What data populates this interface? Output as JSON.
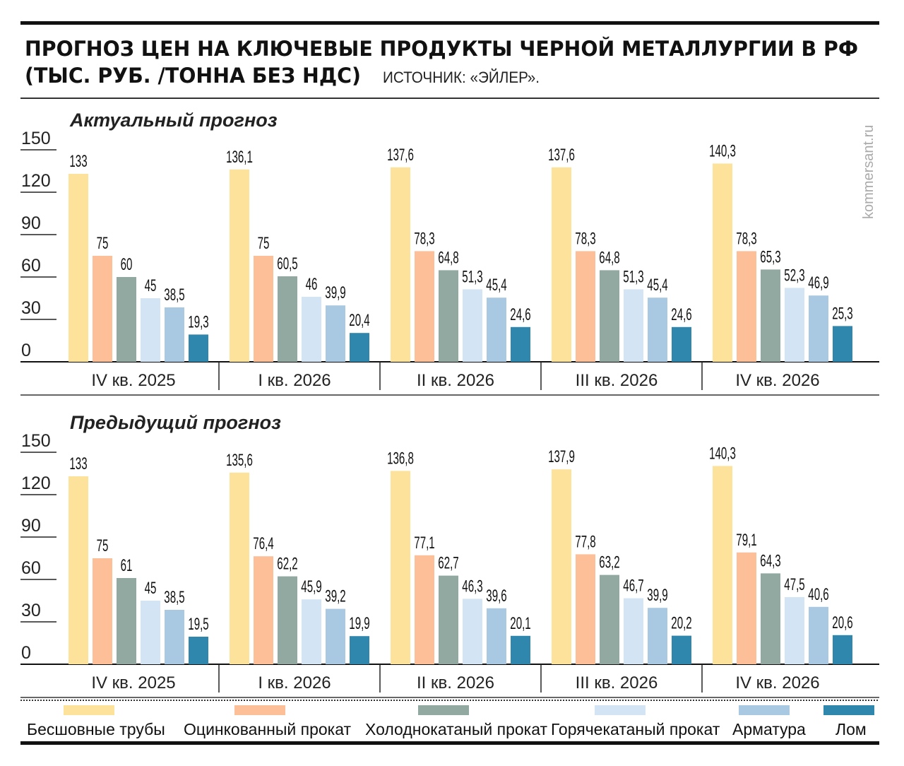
{
  "header": {
    "title_line1": "ПРОГНОЗ ЦЕН НА КЛЮЧЕВЫЕ ПРОДУКТЫ ЧЕРНОЙ МЕТАЛЛУРГИИ В РФ",
    "title_line2": "(ТЫС. РУБ. /ТОННА БЕЗ НДС)",
    "source": "ИСТОЧНИК: «ЭЙЛЕР»."
  },
  "watermark": "kommersant.ru",
  "legend": [
    {
      "name": "Бесшовные трубы",
      "color": "#fde29c"
    },
    {
      "name": "Оцинкованный прокат",
      "color": "#fdbf97"
    },
    {
      "name": "Холоднокатаный прокат",
      "color": "#91a9a1"
    },
    {
      "name": "Горячекатаный прокат",
      "color": "#d3e4f5"
    },
    {
      "name": "Арматура",
      "color": "#a9c8e1"
    },
    {
      "name": "Лом",
      "color": "#2f87ae"
    }
  ],
  "chart_data": [
    {
      "type": "bar",
      "title": "Актуальный прогноз",
      "categories": [
        "IV кв. 2025",
        "I кв. 2026",
        "II кв. 2026",
        "III кв. 2026",
        "IV кв. 2026"
      ],
      "yticks": [
        "0",
        "30",
        "60",
        "90",
        "120",
        "150"
      ],
      "ylim": [
        0,
        150
      ],
      "series": [
        {
          "name": "Бесшовные трубы",
          "values": [
            133,
            136.1,
            137.6,
            137.6,
            140.3
          ],
          "labels": [
            "133",
            "136,1",
            "137,6",
            "137,6",
            "140,3"
          ]
        },
        {
          "name": "Оцинкованный прокат",
          "values": [
            75,
            75,
            78.3,
            78.3,
            78.3
          ],
          "labels": [
            "75",
            "75",
            "78,3",
            "78,3",
            "78,3"
          ]
        },
        {
          "name": "Холоднокатаный прокат",
          "values": [
            60,
            60.5,
            64.8,
            64.8,
            65.3
          ],
          "labels": [
            "60",
            "60,5",
            "64,8",
            "64,8",
            "65,3"
          ]
        },
        {
          "name": "Горячекатаный прокат",
          "values": [
            45,
            46,
            51.3,
            51.3,
            52.3
          ],
          "labels": [
            "45",
            "46",
            "51,3",
            "51,3",
            "52,3"
          ]
        },
        {
          "name": "Арматура",
          "values": [
            38.5,
            39.9,
            45.4,
            45.4,
            46.9
          ],
          "labels": [
            "38,5",
            "39,9",
            "45,4",
            "45,4",
            "46,9"
          ]
        },
        {
          "name": "Лом",
          "values": [
            19.3,
            20.4,
            24.6,
            24.6,
            25.3
          ],
          "labels": [
            "19,3",
            "20,4",
            "24,6",
            "24,6",
            "25,3"
          ]
        }
      ]
    },
    {
      "type": "bar",
      "title": "Предыдущий прогноз",
      "categories": [
        "IV кв. 2025",
        "I кв. 2026",
        "II кв. 2026",
        "III кв. 2026",
        "IV кв. 2026"
      ],
      "yticks": [
        "0",
        "30",
        "60",
        "90",
        "120",
        "150"
      ],
      "ylim": [
        0,
        150
      ],
      "series": [
        {
          "name": "Бесшовные трубы",
          "values": [
            133,
            135.6,
            136.8,
            137.9,
            140.3
          ],
          "labels": [
            "133",
            "135,6",
            "136,8",
            "137,9",
            "140,3"
          ]
        },
        {
          "name": "Оцинкованный прокат",
          "values": [
            75,
            76.4,
            77.1,
            77.8,
            79.1
          ],
          "labels": [
            "75",
            "76,4",
            "77,1",
            "77,8",
            "79,1"
          ]
        },
        {
          "name": "Холоднокатаный прокат",
          "values": [
            61,
            62.2,
            62.7,
            63.2,
            64.3
          ],
          "labels": [
            "61",
            "62,2",
            "62,7",
            "63,2",
            "64,3"
          ]
        },
        {
          "name": "Горячекатаный прокат",
          "values": [
            45,
            45.9,
            46.3,
            46.7,
            47.5
          ],
          "labels": [
            "45",
            "45,9",
            "46,3",
            "46,7",
            "47,5"
          ]
        },
        {
          "name": "Арматура",
          "values": [
            38.5,
            39.2,
            39.6,
            39.9,
            40.6
          ],
          "labels": [
            "38,5",
            "39,2",
            "39,6",
            "39,9",
            "40,6"
          ]
        },
        {
          "name": "Лом",
          "values": [
            19.5,
            19.9,
            20.1,
            20.2,
            20.6
          ],
          "labels": [
            "19,5",
            "19,9",
            "20,1",
            "20,2",
            "20,6"
          ]
        }
      ]
    }
  ]
}
